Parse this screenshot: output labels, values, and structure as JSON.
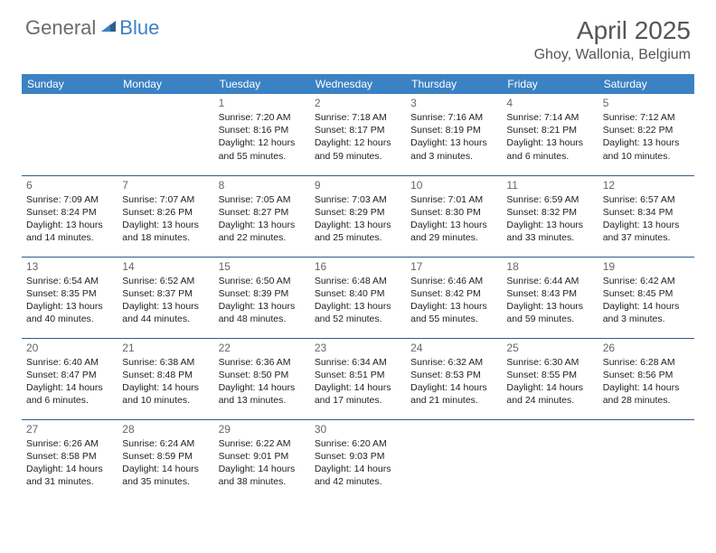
{
  "brand": {
    "part1": "General",
    "part2": "Blue"
  },
  "title": "April 2025",
  "location": "Ghoy, Wallonia, Belgium",
  "colors": {
    "header_bg": "#3b82c4",
    "header_text": "#ffffff",
    "title_color": "#555555",
    "text_color": "#222222",
    "border_color": "#999999",
    "accent_border": "#2f5d8a",
    "background": "#ffffff"
  },
  "day_headers": [
    "Sunday",
    "Monday",
    "Tuesday",
    "Wednesday",
    "Thursday",
    "Friday",
    "Saturday"
  ],
  "weeks": [
    [
      null,
      null,
      {
        "n": "1",
        "sr": "Sunrise: 7:20 AM",
        "ss": "Sunset: 8:16 PM",
        "d1": "Daylight: 12 hours",
        "d2": "and 55 minutes."
      },
      {
        "n": "2",
        "sr": "Sunrise: 7:18 AM",
        "ss": "Sunset: 8:17 PM",
        "d1": "Daylight: 12 hours",
        "d2": "and 59 minutes."
      },
      {
        "n": "3",
        "sr": "Sunrise: 7:16 AM",
        "ss": "Sunset: 8:19 PM",
        "d1": "Daylight: 13 hours",
        "d2": "and 3 minutes."
      },
      {
        "n": "4",
        "sr": "Sunrise: 7:14 AM",
        "ss": "Sunset: 8:21 PM",
        "d1": "Daylight: 13 hours",
        "d2": "and 6 minutes."
      },
      {
        "n": "5",
        "sr": "Sunrise: 7:12 AM",
        "ss": "Sunset: 8:22 PM",
        "d1": "Daylight: 13 hours",
        "d2": "and 10 minutes."
      }
    ],
    [
      {
        "n": "6",
        "sr": "Sunrise: 7:09 AM",
        "ss": "Sunset: 8:24 PM",
        "d1": "Daylight: 13 hours",
        "d2": "and 14 minutes."
      },
      {
        "n": "7",
        "sr": "Sunrise: 7:07 AM",
        "ss": "Sunset: 8:26 PM",
        "d1": "Daylight: 13 hours",
        "d2": "and 18 minutes."
      },
      {
        "n": "8",
        "sr": "Sunrise: 7:05 AM",
        "ss": "Sunset: 8:27 PM",
        "d1": "Daylight: 13 hours",
        "d2": "and 22 minutes."
      },
      {
        "n": "9",
        "sr": "Sunrise: 7:03 AM",
        "ss": "Sunset: 8:29 PM",
        "d1": "Daylight: 13 hours",
        "d2": "and 25 minutes."
      },
      {
        "n": "10",
        "sr": "Sunrise: 7:01 AM",
        "ss": "Sunset: 8:30 PM",
        "d1": "Daylight: 13 hours",
        "d2": "and 29 minutes."
      },
      {
        "n": "11",
        "sr": "Sunrise: 6:59 AM",
        "ss": "Sunset: 8:32 PM",
        "d1": "Daylight: 13 hours",
        "d2": "and 33 minutes."
      },
      {
        "n": "12",
        "sr": "Sunrise: 6:57 AM",
        "ss": "Sunset: 8:34 PM",
        "d1": "Daylight: 13 hours",
        "d2": "and 37 minutes."
      }
    ],
    [
      {
        "n": "13",
        "sr": "Sunrise: 6:54 AM",
        "ss": "Sunset: 8:35 PM",
        "d1": "Daylight: 13 hours",
        "d2": "and 40 minutes."
      },
      {
        "n": "14",
        "sr": "Sunrise: 6:52 AM",
        "ss": "Sunset: 8:37 PM",
        "d1": "Daylight: 13 hours",
        "d2": "and 44 minutes."
      },
      {
        "n": "15",
        "sr": "Sunrise: 6:50 AM",
        "ss": "Sunset: 8:39 PM",
        "d1": "Daylight: 13 hours",
        "d2": "and 48 minutes."
      },
      {
        "n": "16",
        "sr": "Sunrise: 6:48 AM",
        "ss": "Sunset: 8:40 PM",
        "d1": "Daylight: 13 hours",
        "d2": "and 52 minutes."
      },
      {
        "n": "17",
        "sr": "Sunrise: 6:46 AM",
        "ss": "Sunset: 8:42 PM",
        "d1": "Daylight: 13 hours",
        "d2": "and 55 minutes."
      },
      {
        "n": "18",
        "sr": "Sunrise: 6:44 AM",
        "ss": "Sunset: 8:43 PM",
        "d1": "Daylight: 13 hours",
        "d2": "and 59 minutes."
      },
      {
        "n": "19",
        "sr": "Sunrise: 6:42 AM",
        "ss": "Sunset: 8:45 PM",
        "d1": "Daylight: 14 hours",
        "d2": "and 3 minutes."
      }
    ],
    [
      {
        "n": "20",
        "sr": "Sunrise: 6:40 AM",
        "ss": "Sunset: 8:47 PM",
        "d1": "Daylight: 14 hours",
        "d2": "and 6 minutes."
      },
      {
        "n": "21",
        "sr": "Sunrise: 6:38 AM",
        "ss": "Sunset: 8:48 PM",
        "d1": "Daylight: 14 hours",
        "d2": "and 10 minutes."
      },
      {
        "n": "22",
        "sr": "Sunrise: 6:36 AM",
        "ss": "Sunset: 8:50 PM",
        "d1": "Daylight: 14 hours",
        "d2": "and 13 minutes."
      },
      {
        "n": "23",
        "sr": "Sunrise: 6:34 AM",
        "ss": "Sunset: 8:51 PM",
        "d1": "Daylight: 14 hours",
        "d2": "and 17 minutes."
      },
      {
        "n": "24",
        "sr": "Sunrise: 6:32 AM",
        "ss": "Sunset: 8:53 PM",
        "d1": "Daylight: 14 hours",
        "d2": "and 21 minutes."
      },
      {
        "n": "25",
        "sr": "Sunrise: 6:30 AM",
        "ss": "Sunset: 8:55 PM",
        "d1": "Daylight: 14 hours",
        "d2": "and 24 minutes."
      },
      {
        "n": "26",
        "sr": "Sunrise: 6:28 AM",
        "ss": "Sunset: 8:56 PM",
        "d1": "Daylight: 14 hours",
        "d2": "and 28 minutes."
      }
    ],
    [
      {
        "n": "27",
        "sr": "Sunrise: 6:26 AM",
        "ss": "Sunset: 8:58 PM",
        "d1": "Daylight: 14 hours",
        "d2": "and 31 minutes."
      },
      {
        "n": "28",
        "sr": "Sunrise: 6:24 AM",
        "ss": "Sunset: 8:59 PM",
        "d1": "Daylight: 14 hours",
        "d2": "and 35 minutes."
      },
      {
        "n": "29",
        "sr": "Sunrise: 6:22 AM",
        "ss": "Sunset: 9:01 PM",
        "d1": "Daylight: 14 hours",
        "d2": "and 38 minutes."
      },
      {
        "n": "30",
        "sr": "Sunrise: 6:20 AM",
        "ss": "Sunset: 9:03 PM",
        "d1": "Daylight: 14 hours",
        "d2": "and 42 minutes."
      },
      null,
      null,
      null
    ]
  ]
}
